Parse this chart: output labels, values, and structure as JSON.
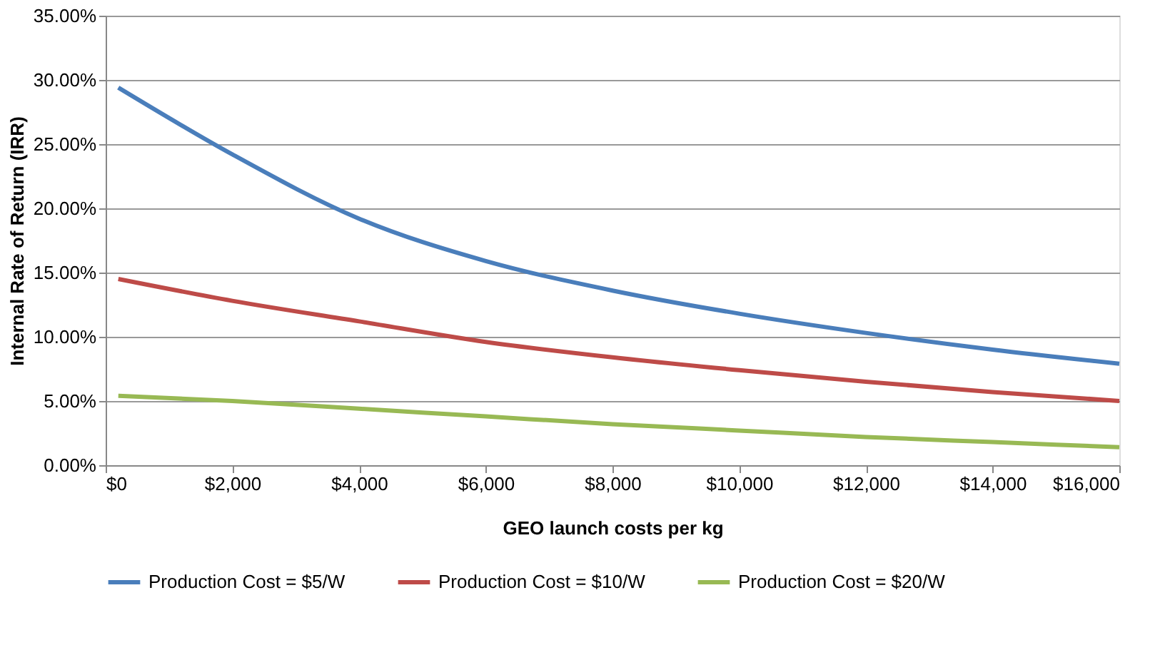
{
  "chart_data": {
    "type": "line",
    "xlabel": "GEO launch costs per kg",
    "ylabel": "Internal Rate of Return (IRR)",
    "x": [
      200,
      2000,
      4000,
      6000,
      8000,
      10000,
      12000,
      14000,
      16000
    ],
    "series": [
      {
        "name": "Production Cost = $5/W",
        "color": "#4a7ebb",
        "values": [
          29.4,
          24.2,
          19.2,
          15.9,
          13.6,
          11.8,
          10.3,
          9.0,
          7.9
        ]
      },
      {
        "name": "Production Cost = $10/W",
        "color": "#be4b48",
        "values": [
          14.5,
          12.8,
          11.2,
          9.6,
          8.4,
          7.4,
          6.5,
          5.7,
          5.0
        ]
      },
      {
        "name": "Production Cost = $20/W",
        "color": "#98b954",
        "values": [
          5.4,
          5.0,
          4.4,
          3.8,
          3.2,
          2.7,
          2.2,
          1.8,
          1.4
        ]
      }
    ],
    "xlim": [
      0,
      16000
    ],
    "xticks": [
      {
        "value": 0,
        "label": "$0"
      },
      {
        "value": 2000,
        "label": "$2,000"
      },
      {
        "value": 4000,
        "label": "$4,000"
      },
      {
        "value": 6000,
        "label": "$6,000"
      },
      {
        "value": 8000,
        "label": "$8,000"
      },
      {
        "value": 10000,
        "label": "$10,000"
      },
      {
        "value": 12000,
        "label": "$12,000"
      },
      {
        "value": 14000,
        "label": "$14,000"
      },
      {
        "value": 16000,
        "label": "$16,000"
      }
    ],
    "ylim": [
      0,
      35
    ],
    "yticks": [
      {
        "value": 0,
        "label": "0.00%"
      },
      {
        "value": 5,
        "label": "5.00%"
      },
      {
        "value": 10,
        "label": "10.00%"
      },
      {
        "value": 15,
        "label": "15.00%"
      },
      {
        "value": 20,
        "label": "20.00%"
      },
      {
        "value": 25,
        "label": "25.00%"
      },
      {
        "value": 30,
        "label": "30.00%"
      },
      {
        "value": 35,
        "label": "35.00%"
      }
    ],
    "grid": "y",
    "legend": "bottom",
    "marker": "none",
    "line_style": "solid"
  }
}
